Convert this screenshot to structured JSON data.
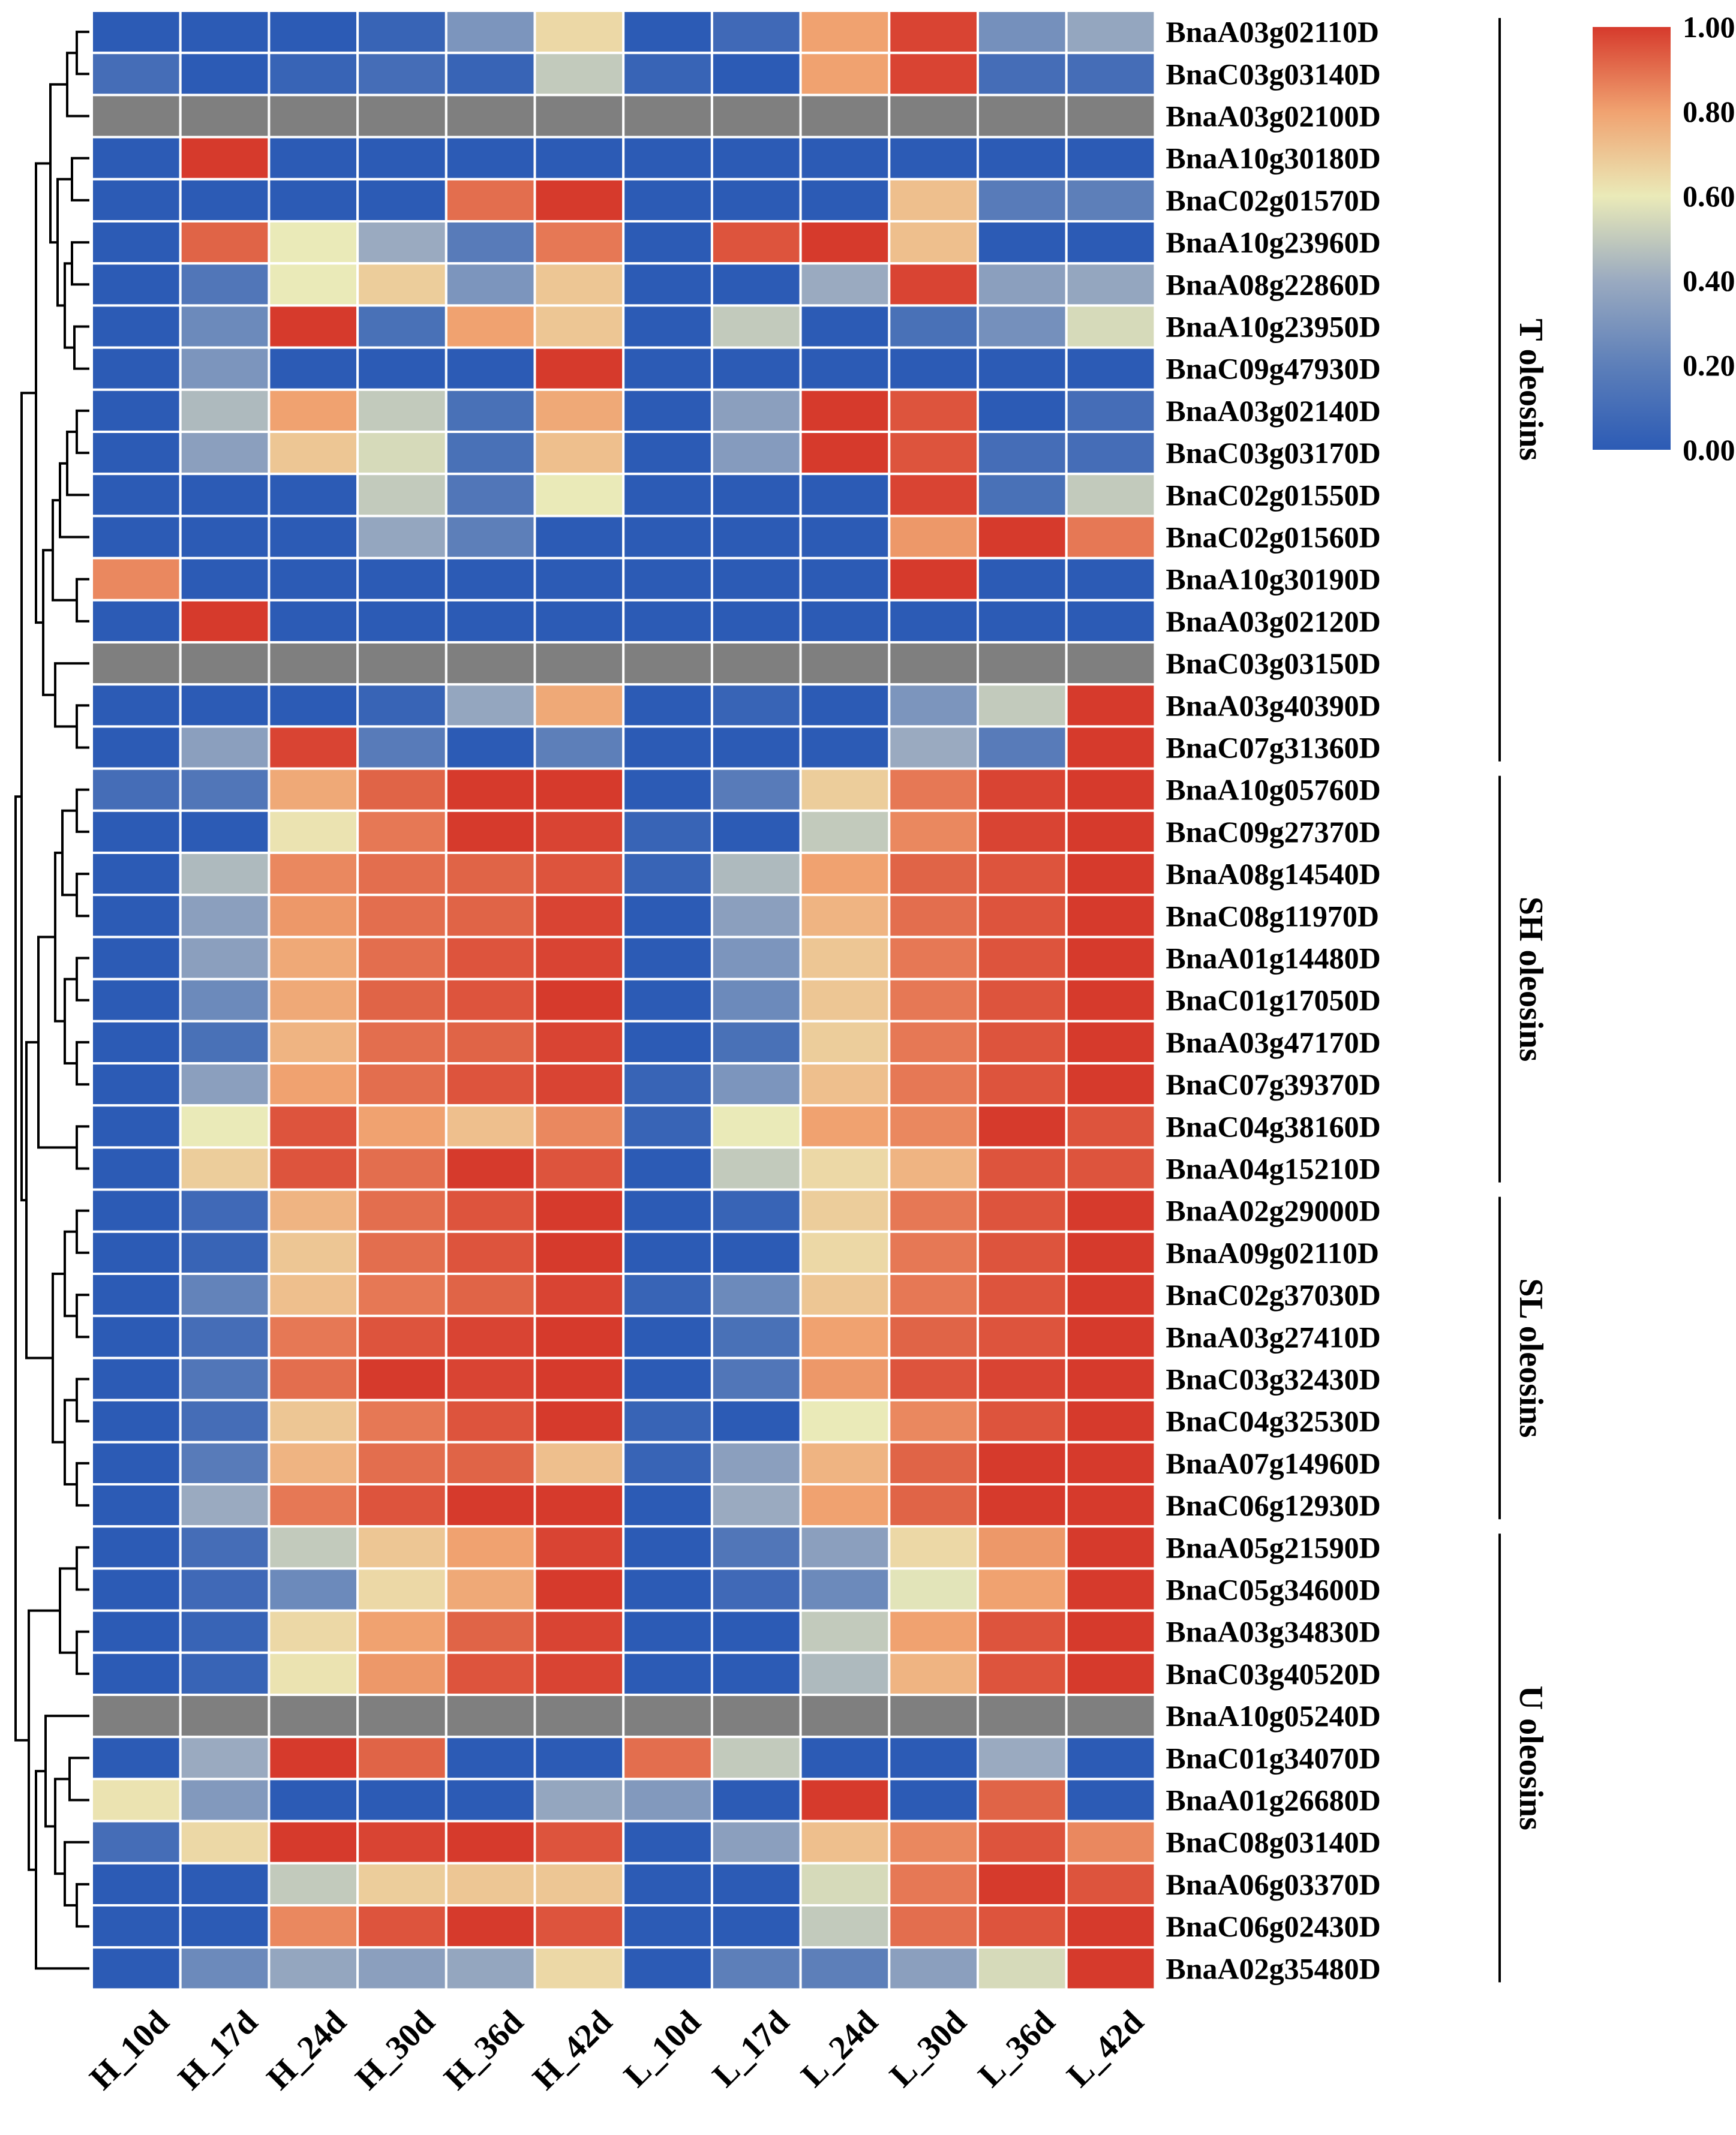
{
  "chart_data": {
    "type": "heatmap",
    "title": "",
    "columns": [
      "H_10d",
      "H_17d",
      "H_24d",
      "H_30d",
      "H_36d",
      "H_42d",
      "L_10d",
      "L_17d",
      "L_24d",
      "L_30d",
      "L_36d",
      "L_42d"
    ],
    "rows": [
      "BnaA03g02110D",
      "BnaC03g03140D",
      "BnaA03g02100D",
      "BnaA10g30180D",
      "BnaC02g01570D",
      "BnaA10g23960D",
      "BnaA08g22860D",
      "BnaA10g23950D",
      "BnaC09g47930D",
      "BnaA03g02140D",
      "BnaC03g03170D",
      "BnaC02g01550D",
      "BnaC02g01560D",
      "BnaA10g30190D",
      "BnaA03g02120D",
      "BnaC03g03150D",
      "BnaA03g40390D",
      "BnaC07g31360D",
      "BnaA10g05760D",
      "BnaC09g27370D",
      "BnaA08g14540D",
      "BnaC08g11970D",
      "BnaA01g14480D",
      "BnaC01g17050D",
      "BnaA03g47170D",
      "BnaC07g39370D",
      "BnaC04g38160D",
      "BnaA04g15210D",
      "BnaA02g29000D",
      "BnaA09g02110D",
      "BnaC02g37030D",
      "BnaA03g27410D",
      "BnaC03g32430D",
      "BnaC04g32530D",
      "BnaA07g14960D",
      "BnaC06g12930D",
      "BnaA05g21590D",
      "BnaC05g34600D",
      "BnaA03g34830D",
      "BnaC03g40520D",
      "BnaA10g05240D",
      "BnaC01g34070D",
      "BnaA01g26680D",
      "BnaC08g03140D",
      "BnaA06g03370D",
      "BnaC06g02430D",
      "BnaA02g35480D"
    ],
    "values": [
      [
        0.0,
        0.0,
        0.0,
        0.05,
        0.3,
        0.65,
        0.0,
        0.08,
        0.8,
        0.98,
        0.28,
        0.38
      ],
      [
        0.1,
        0.0,
        0.05,
        0.1,
        0.05,
        0.5,
        0.05,
        0.0,
        0.8,
        0.98,
        0.1,
        0.1
      ],
      [
        null,
        null,
        null,
        null,
        null,
        null,
        null,
        null,
        null,
        null,
        null,
        null
      ],
      [
        0.0,
        1.0,
        0.0,
        0.0,
        0.0,
        0.0,
        0.0,
        0.0,
        0.0,
        0.0,
        0.0,
        0.0
      ],
      [
        0.0,
        0.0,
        0.0,
        0.0,
        0.9,
        1.0,
        0.0,
        0.0,
        0.0,
        0.72,
        0.18,
        0.2
      ],
      [
        0.0,
        0.92,
        0.6,
        0.4,
        0.18,
        0.88,
        0.0,
        0.95,
        1.0,
        0.72,
        0.0,
        0.0
      ],
      [
        0.0,
        0.15,
        0.6,
        0.68,
        0.3,
        0.7,
        0.0,
        0.0,
        0.4,
        0.98,
        0.35,
        0.38
      ],
      [
        0.0,
        0.25,
        1.0,
        0.12,
        0.8,
        0.7,
        0.0,
        0.5,
        0.0,
        0.12,
        0.28,
        0.55
      ],
      [
        0.0,
        0.3,
        0.0,
        0.0,
        0.0,
        1.0,
        0.0,
        0.0,
        0.0,
        0.0,
        0.0,
        0.0
      ],
      [
        0.0,
        0.45,
        0.8,
        0.5,
        0.12,
        0.78,
        0.0,
        0.35,
        1.0,
        0.95,
        0.0,
        0.1
      ],
      [
        0.0,
        0.35,
        0.7,
        0.55,
        0.12,
        0.72,
        0.0,
        0.33,
        1.0,
        0.95,
        0.1,
        0.1
      ],
      [
        0.0,
        0.0,
        0.0,
        0.5,
        0.15,
        0.6,
        0.0,
        0.0,
        0.0,
        0.98,
        0.12,
        0.5
      ],
      [
        0.0,
        0.0,
        0.0,
        0.38,
        0.2,
        0.0,
        0.0,
        0.0,
        0.0,
        0.82,
        1.0,
        0.88
      ],
      [
        0.85,
        0.0,
        0.0,
        0.0,
        0.0,
        0.0,
        0.0,
        0.0,
        0.0,
        1.0,
        0.0,
        0.0
      ],
      [
        0.0,
        1.0,
        0.0,
        0.0,
        0.0,
        0.0,
        0.0,
        0.0,
        0.0,
        0.0,
        0.0,
        0.0
      ],
      [
        null,
        null,
        null,
        null,
        null,
        null,
        null,
        null,
        null,
        null,
        null,
        null
      ],
      [
        0.0,
        0.0,
        0.0,
        0.05,
        0.38,
        0.78,
        0.0,
        0.05,
        0.0,
        0.3,
        0.5,
        1.0
      ],
      [
        0.0,
        0.35,
        0.98,
        0.18,
        0.0,
        0.2,
        0.0,
        0.0,
        0.0,
        0.4,
        0.18,
        1.0
      ],
      [
        0.1,
        0.15,
        0.78,
        0.92,
        1.0,
        1.0,
        0.0,
        0.18,
        0.68,
        0.88,
        0.98,
        1.0
      ],
      [
        0.0,
        0.0,
        0.62,
        0.88,
        1.0,
        0.98,
        0.05,
        0.0,
        0.5,
        0.85,
        0.98,
        1.0
      ],
      [
        0.0,
        0.45,
        0.85,
        0.9,
        0.92,
        0.95,
        0.05,
        0.45,
        0.8,
        0.92,
        0.95,
        1.0
      ],
      [
        0.0,
        0.35,
        0.82,
        0.9,
        0.92,
        0.98,
        0.0,
        0.35,
        0.75,
        0.9,
        0.95,
        1.0
      ],
      [
        0.0,
        0.35,
        0.78,
        0.9,
        0.95,
        0.98,
        0.0,
        0.3,
        0.7,
        0.88,
        0.95,
        1.0
      ],
      [
        0.0,
        0.25,
        0.78,
        0.92,
        0.95,
        1.0,
        0.0,
        0.25,
        0.7,
        0.88,
        0.95,
        1.0
      ],
      [
        0.0,
        0.12,
        0.75,
        0.9,
        0.92,
        0.98,
        0.0,
        0.12,
        0.68,
        0.88,
        0.95,
        1.0
      ],
      [
        0.0,
        0.35,
        0.8,
        0.9,
        0.95,
        0.98,
        0.05,
        0.3,
        0.72,
        0.88,
        0.95,
        1.0
      ],
      [
        0.0,
        0.6,
        0.95,
        0.8,
        0.72,
        0.85,
        0.05,
        0.6,
        0.8,
        0.85,
        1.0,
        0.95
      ],
      [
        0.0,
        0.68,
        0.95,
        0.9,
        1.0,
        0.95,
        0.0,
        0.5,
        0.65,
        0.75,
        0.95,
        0.95
      ],
      [
        0.0,
        0.08,
        0.75,
        0.9,
        0.95,
        1.0,
        0.0,
        0.05,
        0.68,
        0.88,
        0.95,
        1.0
      ],
      [
        0.0,
        0.05,
        0.7,
        0.9,
        0.95,
        1.0,
        0.0,
        0.0,
        0.65,
        0.88,
        0.95,
        1.0
      ],
      [
        0.0,
        0.22,
        0.72,
        0.88,
        0.92,
        0.98,
        0.05,
        0.25,
        0.7,
        0.88,
        0.95,
        1.0
      ],
      [
        0.0,
        0.1,
        0.88,
        0.95,
        0.98,
        1.0,
        0.0,
        0.12,
        0.8,
        0.92,
        0.95,
        1.0
      ],
      [
        0.0,
        0.15,
        0.9,
        1.0,
        0.98,
        1.0,
        0.0,
        0.15,
        0.82,
        0.95,
        0.98,
        1.0
      ],
      [
        0.0,
        0.1,
        0.7,
        0.88,
        0.95,
        1.0,
        0.05,
        0.0,
        0.6,
        0.85,
        0.95,
        1.0
      ],
      [
        0.0,
        0.18,
        0.75,
        0.9,
        0.92,
        0.72,
        0.05,
        0.35,
        0.75,
        0.92,
        1.0,
        1.0
      ],
      [
        0.0,
        0.4,
        0.88,
        0.95,
        1.0,
        1.0,
        0.0,
        0.4,
        0.8,
        0.92,
        1.0,
        1.0
      ],
      [
        0.0,
        0.1,
        0.5,
        0.7,
        0.8,
        0.98,
        0.0,
        0.15,
        0.35,
        0.65,
        0.82,
        1.0
      ],
      [
        0.0,
        0.08,
        0.25,
        0.65,
        0.78,
        1.0,
        0.0,
        0.08,
        0.25,
        0.58,
        0.8,
        1.0
      ],
      [
        0.0,
        0.05,
        0.65,
        0.8,
        0.92,
        0.98,
        0.0,
        0.0,
        0.5,
        0.8,
        0.95,
        1.0
      ],
      [
        0.0,
        0.05,
        0.62,
        0.82,
        0.95,
        0.98,
        0.0,
        0.0,
        0.45,
        0.75,
        0.95,
        1.0
      ],
      [
        null,
        null,
        null,
        null,
        null,
        null,
        null,
        null,
        null,
        null,
        null,
        null
      ],
      [
        0.0,
        0.4,
        1.0,
        0.92,
        0.0,
        0.0,
        0.9,
        0.5,
        0.0,
        0.0,
        0.4,
        0.0
      ],
      [
        0.62,
        0.32,
        0.0,
        0.0,
        0.0,
        0.38,
        0.32,
        0.0,
        1.0,
        0.0,
        0.92,
        0.0
      ],
      [
        0.1,
        0.65,
        1.0,
        0.98,
        1.0,
        0.95,
        0.0,
        0.35,
        0.72,
        0.85,
        0.95,
        0.85
      ],
      [
        0.0,
        0.0,
        0.5,
        0.68,
        0.7,
        0.7,
        0.0,
        0.0,
        0.55,
        0.88,
        1.0,
        0.95
      ],
      [
        0.0,
        0.0,
        0.85,
        0.95,
        1.0,
        0.95,
        0.0,
        0.0,
        0.5,
        0.9,
        0.95,
        1.0
      ],
      [
        0.0,
        0.25,
        0.38,
        0.35,
        0.38,
        0.65,
        0.0,
        0.2,
        0.2,
        0.35,
        0.55,
        1.0
      ]
    ],
    "groups": [
      {
        "label": "T oleosins",
        "start": 0,
        "end": 17
      },
      {
        "label": "SH oleosins",
        "start": 18,
        "end": 27
      },
      {
        "label": "SL oleosins",
        "start": 28,
        "end": 35
      },
      {
        "label": "U oleosins",
        "start": 36,
        "end": 46
      }
    ],
    "colorbar": {
      "min": 0.0,
      "max": 1.0,
      "tick_labels": [
        "1.00",
        "0.80",
        "0.60",
        "0.40",
        "0.20",
        "0.00"
      ],
      "colors": [
        "#2c5bb5",
        "#5d7fb9",
        "#9aaac0",
        "#eaeab8",
        "#f0a270",
        "#d63a2c"
      ]
    },
    "missing_color": "#7f7f7f"
  }
}
